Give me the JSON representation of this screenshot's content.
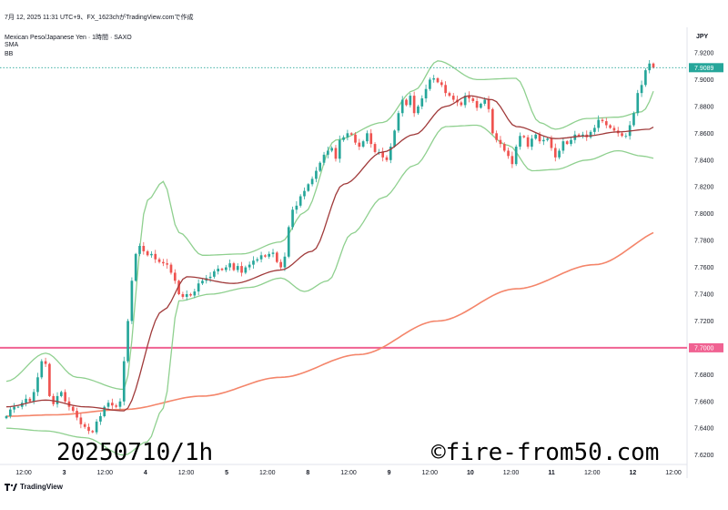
{
  "header": {
    "line1": "7月 12, 2025 11:31 UTC+9、FX_1623chがTradingView.comで作成",
    "line2": "Mexican Peso/Japanese Yen · 1時間 · SAXO",
    "line3": "SMA",
    "line4": "BB"
  },
  "currency_label": "JPY",
  "footer_logo": "TradingView",
  "watermark_left": "20250710/1h",
  "watermark_right": "©fire-from50.com",
  "colors": {
    "up": "#26a69a",
    "down": "#ef5350",
    "bb": "#8fd08f",
    "sma_mid": "#a03a3a",
    "sma_long": "#f4856a",
    "hline": "#f06292",
    "last_price_bg": "#26a69a"
  },
  "chart_data": {
    "type": "candlestick",
    "title": "",
    "ylim": [
      7.613,
      7.939
    ],
    "yticks": [
      7.62,
      7.64,
      7.66,
      7.68,
      7.7,
      7.72,
      7.74,
      7.76,
      7.78,
      7.8,
      7.82,
      7.84,
      7.86,
      7.88,
      7.9,
      7.92
    ],
    "ytick_labels": [
      "7.6200",
      "7.6400",
      "7.6600",
      "7.6800",
      "7.7000",
      "7.7200",
      "7.7400",
      "7.7600",
      "7.7800",
      "7.8000",
      "7.8200",
      "7.8400",
      "7.8600",
      "7.8800",
      "7.9000",
      "7.9200"
    ],
    "xticks": [
      {
        "label": "12:00",
        "x": 0
      },
      {
        "label": "3",
        "x": 12
      },
      {
        "label": "12:00",
        "x": 24
      },
      {
        "label": "4",
        "x": 36
      },
      {
        "label": "12:00",
        "x": 48
      },
      {
        "label": "5",
        "x": 60
      },
      {
        "label": "12:00",
        "x": 72
      },
      {
        "label": "8",
        "x": 84
      },
      {
        "label": "12:00",
        "x": 96
      },
      {
        "label": "9",
        "x": 108
      },
      {
        "label": "12:00",
        "x": 120
      },
      {
        "label": "10",
        "x": 132
      },
      {
        "label": "12:00",
        "x": 144
      },
      {
        "label": "11",
        "x": 156
      },
      {
        "label": "12:00",
        "x": 168
      },
      {
        "label": "12",
        "x": 180
      },
      {
        "label": "12:00",
        "x": 192
      }
    ],
    "closes": [
      7.649,
      7.654,
      7.656,
      7.656,
      7.659,
      7.662,
      7.66,
      7.667,
      7.678,
      7.69,
      7.688,
      7.664,
      7.658,
      7.664,
      7.667,
      7.66,
      7.656,
      7.653,
      7.648,
      7.643,
      7.641,
      7.638,
      7.637,
      7.645,
      7.649,
      7.656,
      7.659,
      7.657,
      7.656,
      7.66,
      7.69,
      7.72,
      7.75,
      7.77,
      7.776,
      7.772,
      7.769,
      7.77,
      7.766,
      7.764,
      7.763,
      7.762,
      7.756,
      7.75,
      7.74,
      7.738,
      7.74,
      7.739,
      7.742,
      7.748,
      7.75,
      7.752,
      7.753,
      7.757,
      7.759,
      7.758,
      7.76,
      7.763,
      7.758,
      7.761,
      7.756,
      7.76,
      7.762,
      7.765,
      7.766,
      7.769,
      7.768,
      7.77,
      7.771,
      7.764,
      7.76,
      7.768,
      7.79,
      7.803,
      7.806,
      7.813,
      7.817,
      7.822,
      7.826,
      7.832,
      7.838,
      7.844,
      7.847,
      7.849,
      7.841,
      7.855,
      7.857,
      7.86,
      7.859,
      7.853,
      7.85,
      7.854,
      7.86,
      7.852,
      7.846,
      7.846,
      7.842,
      7.84,
      7.85,
      7.862,
      7.875,
      7.885,
      7.881,
      7.888,
      7.875,
      7.88,
      7.886,
      7.893,
      7.9,
      7.901,
      7.898,
      7.896,
      7.89,
      7.888,
      7.885,
      7.883,
      7.881,
      7.888,
      7.886,
      7.884,
      7.879,
      7.882,
      7.885,
      7.878,
      7.86,
      7.855,
      7.852,
      7.847,
      7.843,
      7.837,
      7.85,
      7.858,
      7.857,
      7.85,
      7.856,
      7.859,
      7.854,
      7.855,
      7.856,
      7.849,
      7.842,
      7.847,
      7.854,
      7.852,
      7.855,
      7.859,
      7.858,
      7.859,
      7.857,
      7.861,
      7.864,
      7.87,
      7.869,
      7.866,
      7.864,
      7.862,
      7.86,
      7.858,
      7.858,
      7.866,
      7.875,
      7.89,
      7.896,
      7.907,
      7.912,
      7.9089
    ],
    "sma_mid_anchors": [
      [
        0,
        7.656
      ],
      [
        10,
        7.661
      ],
      [
        20,
        7.656
      ],
      [
        30,
        7.653
      ],
      [
        40,
        7.728
      ],
      [
        46,
        7.753
      ],
      [
        58,
        7.748
      ],
      [
        70,
        7.758
      ],
      [
        78,
        7.772
      ],
      [
        86,
        7.822
      ],
      [
        96,
        7.846
      ],
      [
        104,
        7.859
      ],
      [
        112,
        7.88
      ],
      [
        118,
        7.888
      ],
      [
        124,
        7.885
      ],
      [
        130,
        7.865
      ],
      [
        140,
        7.856
      ],
      [
        148,
        7.858
      ],
      [
        156,
        7.861
      ],
      [
        164,
        7.863
      ],
      [
        169,
        7.878
      ]
    ],
    "bb_upper_anchors": [
      [
        0,
        7.675
      ],
      [
        10,
        7.696
      ],
      [
        18,
        7.678
      ],
      [
        30,
        7.669
      ],
      [
        36,
        7.81
      ],
      [
        40,
        7.824
      ],
      [
        44,
        7.786
      ],
      [
        50,
        7.769
      ],
      [
        60,
        7.77
      ],
      [
        70,
        7.779
      ],
      [
        76,
        7.801
      ],
      [
        84,
        7.855
      ],
      [
        96,
        7.868
      ],
      [
        104,
        7.892
      ],
      [
        110,
        7.914
      ],
      [
        120,
        7.9
      ],
      [
        130,
        7.901
      ],
      [
        136,
        7.868
      ],
      [
        140,
        7.863
      ],
      [
        148,
        7.871
      ],
      [
        156,
        7.872
      ],
      [
        162,
        7.876
      ],
      [
        169,
        7.915
      ]
    ],
    "bb_lower_anchors": [
      [
        0,
        7.64
      ],
      [
        10,
        7.638
      ],
      [
        20,
        7.633
      ],
      [
        30,
        7.62
      ],
      [
        36,
        7.63
      ],
      [
        40,
        7.655
      ],
      [
        44,
        7.735
      ],
      [
        52,
        7.74
      ],
      [
        62,
        7.745
      ],
      [
        70,
        7.752
      ],
      [
        76,
        7.742
      ],
      [
        82,
        7.75
      ],
      [
        88,
        7.785
      ],
      [
        96,
        7.812
      ],
      [
        104,
        7.836
      ],
      [
        112,
        7.865
      ],
      [
        120,
        7.866
      ],
      [
        128,
        7.851
      ],
      [
        134,
        7.832
      ],
      [
        140,
        7.833
      ],
      [
        148,
        7.84
      ],
      [
        156,
        7.847
      ],
      [
        162,
        7.843
      ],
      [
        166,
        7.841
      ],
      [
        169,
        7.842
      ]
    ],
    "sma_long_anchors": [
      [
        0,
        7.649
      ],
      [
        12,
        7.65
      ],
      [
        30,
        7.654
      ],
      [
        50,
        7.664
      ],
      [
        70,
        7.678
      ],
      [
        90,
        7.695
      ],
      [
        110,
        7.72
      ],
      [
        130,
        7.744
      ],
      [
        150,
        7.762
      ],
      [
        169,
        7.789
      ]
    ],
    "hline": 7.7,
    "hline_label": "7.7000",
    "last_price": 7.9089,
    "last_price_label": "7.9089",
    "grid": false,
    "legend": "none"
  }
}
